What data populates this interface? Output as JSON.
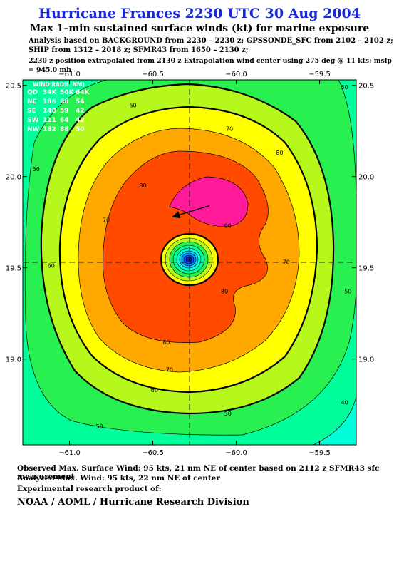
{
  "title": "Hurricane Frances 2230 UTC 30 Aug 2004",
  "subtitle": "Max 1–min sustained surface winds (kt) for marine exposure",
  "analysis_line1": "Analysis based on  BACKGROUND from 2230 – 2230 z;  GPSSONDE_SFC from 2102 – 2102 z;",
  "analysis_line2": "SHIP from 1312 – 2018 z;  SFMR43 from 1650 – 2130 z;",
  "analysis_line3": "2230 z position extrapolated from 2130 z Extrapolation wind center using 275 deg @ 11 kts; mslp = 945.0 mb",
  "footer": {
    "observed": "Observed Max. Surface Wind: 95 kts, 21 nm NE of center based on 2112 z SFMR43 sfc measurement",
    "analyzed": "Analyzed Max. Wind: 95 kts, 22 nm NE of center",
    "experimental": "Experimental research product of:",
    "credit": "NOAA / AOML / Hurricane Research Division"
  },
  "wind_radii": {
    "header": "WIND RADII (NM)",
    "columns": [
      "QD",
      "34K",
      "50K",
      "64K"
    ],
    "rows": [
      [
        "NE",
        "186",
        "88",
        "54"
      ],
      [
        "SE",
        "140",
        "59",
        "42"
      ],
      [
        "SW",
        "111",
        "64",
        "42"
      ],
      [
        "NW",
        "182",
        "88",
        "50"
      ]
    ]
  },
  "chart_data": {
    "type": "heatmap",
    "x_ticks": [
      "−61.0",
      "−60.5",
      "−60.0",
      "−59.5"
    ],
    "x_tick_values": [
      -61.0,
      -60.5,
      -60.0,
      -59.5
    ],
    "y_ticks": [
      "20.5",
      "20.0",
      "19.5",
      "19.0"
    ],
    "y_tick_values": [
      20.5,
      20.0,
      19.5,
      19.0
    ],
    "xlim": [
      -61.28,
      -59.28
    ],
    "ylim": [
      18.53,
      20.53
    ],
    "center": {
      "lon": -60.27,
      "lat": 19.51
    },
    "motion_arrow": {
      "from": [
        -60.16,
        19.84
      ],
      "to": [
        -60.38,
        19.78
      ]
    },
    "contour_labels": [
      {
        "text": "60",
        "lon": -60.62,
        "lat": 20.38
      },
      {
        "text": "50",
        "lon": -59.35,
        "lat": 20.48
      },
      {
        "text": "70",
        "lon": -60.04,
        "lat": 20.25
      },
      {
        "text": "80",
        "lon": -59.74,
        "lat": 20.12
      },
      {
        "text": "50",
        "lon": -61.2,
        "lat": 20.03
      },
      {
        "text": "80",
        "lon": -60.56,
        "lat": 19.94
      },
      {
        "text": "70",
        "lon": -60.78,
        "lat": 19.75
      },
      {
        "text": "90",
        "lon": -60.05,
        "lat": 19.72
      },
      {
        "text": "70",
        "lon": -59.7,
        "lat": 19.52
      },
      {
        "text": "60",
        "lon": -61.11,
        "lat": 19.5
      },
      {
        "text": "50",
        "lon": -59.33,
        "lat": 19.36
      },
      {
        "text": "80",
        "lon": -60.07,
        "lat": 19.36
      },
      {
        "text": "80",
        "lon": -60.42,
        "lat": 19.08
      },
      {
        "text": "70",
        "lon": -60.4,
        "lat": 18.93
      },
      {
        "text": "60",
        "lon": -60.49,
        "lat": 18.82
      },
      {
        "text": "50",
        "lon": -60.05,
        "lat": 18.69
      },
      {
        "text": "40",
        "lon": -59.35,
        "lat": 18.75
      },
      {
        "text": "50",
        "lon": -60.82,
        "lat": 18.62
      }
    ],
    "contour_levels": [
      40,
      50,
      60,
      70,
      80,
      90
    ],
    "color_bands": [
      {
        "level": "below_40",
        "color": "#00ffd8"
      },
      {
        "level": "40-50",
        "color": "#00ff9a"
      },
      {
        "level": "50-60",
        "color": "#28f050"
      },
      {
        "level": "60-70",
        "color": "#b6f71c"
      },
      {
        "level": "70-80",
        "color": "#ffff00"
      },
      {
        "level": "80-90",
        "color": "#ffa800"
      },
      {
        "level": "90-100",
        "color": "#ff4a00"
      },
      {
        "level": "100_plus",
        "color": "#ff1a9a"
      }
    ]
  }
}
